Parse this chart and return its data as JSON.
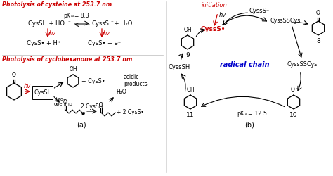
{
  "bg_color": "#ffffff",
  "red_color": "#cc0000",
  "blue_color": "#0000cc",
  "black_color": "#000000",
  "fig_width": 4.74,
  "fig_height": 2.5,
  "dpi": 100,
  "section1_title": "Photolysis of cysteine at 253.7 nm",
  "section2_title": "Photolysis of cyclohexanone at 253.7 nm",
  "label_a": "(a)",
  "label_b": "(b)",
  "initiation_label": "initiation",
  "radical_chain_label": "radical chain",
  "num8": "8",
  "num9": "9",
  "num10": "10",
  "num11": "11",
  "pka_label": "pK",
  "pka_a2_sub": "a2",
  "pka_val": "= 8.3",
  "pka_12_label": "pK",
  "pka_a_sub": "a",
  "pka_12_val": "= 12.5"
}
